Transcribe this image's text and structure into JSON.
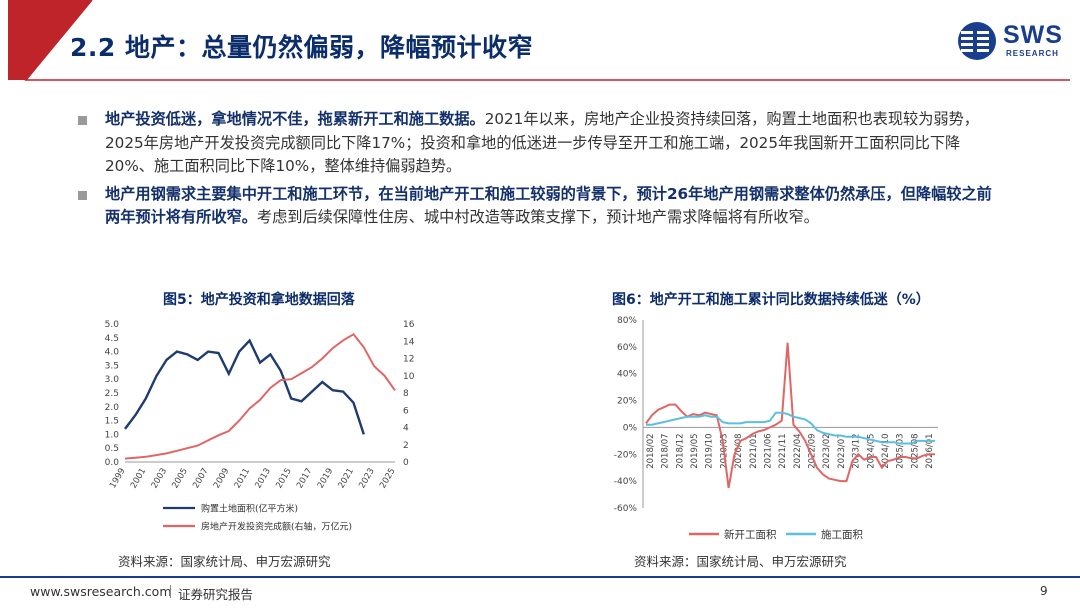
{
  "slide": {
    "title": "2.2 地产：总量仍然偏弱，降幅预计收窄",
    "logo_text": "SWS",
    "logo_sub": "RESEARCH"
  },
  "bullets": [
    {
      "bold": "地产投资低迷，拿地情况不佳，拖累新开工和施工数据。",
      "text": "2021年以来，房地产企业投资持续回落，购置土地面积也表现较为弱势，2025年房地产开发投资完成额同比下降17%；投资和拿地的低迷进一步传导至开工和施工端，2025年我国新开工面积同比下降20%、施工面积同比下降10%，整体维持偏弱趋势。"
    },
    {
      "bold": "地产用钢需求主要集中开工和施工环节，在当前地产开工和施工较弱的背景下，预计26年地产用钢需求整体仍然承压，但降幅较之前两年预计将有所收窄。",
      "text": "考虑到后续保障性住房、城中村改造等政策支撑下，预计地产需求降幅将有所收窄。"
    }
  ],
  "chart_data": [
    {
      "type": "line",
      "title": "图5：地产投资和拿地数据回落",
      "x": [
        "1999",
        "2000",
        "2001",
        "2002",
        "2003",
        "2004",
        "2005",
        "2006",
        "2007",
        "2008",
        "2009",
        "2010",
        "2011",
        "2012",
        "2013",
        "2014",
        "2015",
        "2016",
        "2017",
        "2018",
        "2019",
        "2020",
        "2021",
        "2022",
        "2023",
        "2024",
        "2025"
      ],
      "x_tick_labels": [
        "1999",
        "2001",
        "2003",
        "2005",
        "2007",
        "2009",
        "2011",
        "2013",
        "2015",
        "2017",
        "2019",
        "2021",
        "2023",
        "2025"
      ],
      "ylim_left": [
        0,
        5.0
      ],
      "yticks_left": [
        "0.0",
        "0.5",
        "1.0",
        "1.5",
        "2.0",
        "2.5",
        "3.0",
        "3.5",
        "4.0",
        "4.5",
        "5.0"
      ],
      "ylim_right": [
        0,
        16
      ],
      "yticks_right": [
        "0",
        "2",
        "4",
        "6",
        "8",
        "10",
        "12",
        "14",
        "16"
      ],
      "series": [
        {
          "name": "购置土地面积(亿平方米)",
          "axis": "left",
          "color": "#1f3b70",
          "values": [
            1.2,
            1.7,
            2.3,
            3.1,
            3.7,
            4.0,
            3.9,
            3.7,
            4.0,
            3.95,
            3.2,
            4.0,
            4.4,
            3.6,
            3.9,
            3.3,
            2.3,
            2.2,
            2.55,
            2.9,
            2.6,
            2.55,
            2.15,
            1.0,
            null,
            null,
            null
          ]
        },
        {
          "name": "房地产开发投资完成额(右轴，万亿元)",
          "axis": "right",
          "color": "#e06666",
          "values": [
            0.4,
            0.5,
            0.6,
            0.8,
            1.0,
            1.3,
            1.6,
            1.9,
            2.5,
            3.1,
            3.6,
            4.8,
            6.2,
            7.2,
            8.6,
            9.5,
            9.6,
            10.3,
            11.0,
            12.0,
            13.2,
            14.1,
            14.8,
            13.3,
            11.1,
            10.0,
            8.3
          ]
        }
      ]
    },
    {
      "type": "line",
      "title": "图6：地产开工和施工累计同比数据持续低迷（%）",
      "x_tick_labels": [
        "2018/02",
        "2018/07",
        "2018/12",
        "2019/05",
        "2019/10",
        "2020/03",
        "2020/08",
        "2021/01",
        "2021/06",
        "2021/11",
        "2022/04",
        "2022/09",
        "2023/02",
        "2023/07",
        "2023/12",
        "2024/05",
        "2024/10",
        "2025/03",
        "2025/08",
        "2026/01"
      ],
      "ylim": [
        -60,
        80
      ],
      "yticks": [
        "80%",
        "60%",
        "40%",
        "20%",
        "0%",
        "-20%",
        "-40%",
        "-60%"
      ],
      "series": [
        {
          "name": "新开工面积",
          "color": "#e06666",
          "values": [
            3,
            9,
            13,
            15,
            17,
            17,
            12,
            8,
            10,
            9,
            11,
            10,
            9,
            -10,
            -45,
            -20,
            -10,
            -8,
            -5,
            -3,
            -2,
            0,
            2,
            5,
            63,
            2,
            -3,
            -10,
            -20,
            -30,
            -35,
            -38,
            -39,
            -40,
            -40,
            -25,
            -20,
            -24,
            -22,
            -22,
            -30,
            -25,
            -24,
            -22,
            -22,
            -23,
            -23,
            -21,
            -20,
            -20
          ]
        },
        {
          "name": "施工面积",
          "color": "#5bc0de",
          "values": [
            2,
            2,
            3,
            4,
            5,
            6,
            7,
            8,
            8,
            8,
            9,
            8,
            8,
            4,
            3,
            3,
            3,
            4,
            4,
            4,
            4,
            5,
            11,
            11,
            10,
            8,
            7,
            6,
            3,
            -2,
            -4,
            -5,
            -6,
            -6,
            -7,
            -7,
            -7,
            -8,
            -9,
            -10,
            -11,
            -11,
            -11,
            -12,
            -12,
            -12,
            -10,
            -10,
            -10,
            -10
          ]
        }
      ]
    }
  ],
  "sources": {
    "left": "资料来源：国家统计局、申万宏源研究",
    "right": "资料来源：国家统计局、申万宏源研究"
  },
  "footer": {
    "url": "www.swsresearch.com",
    "report": "证券研究报告",
    "page": "9"
  },
  "colors": {
    "brand_blue": "#1a3e8f",
    "title_blue": "#0c2d6b",
    "accent_red": "#c0242b"
  }
}
